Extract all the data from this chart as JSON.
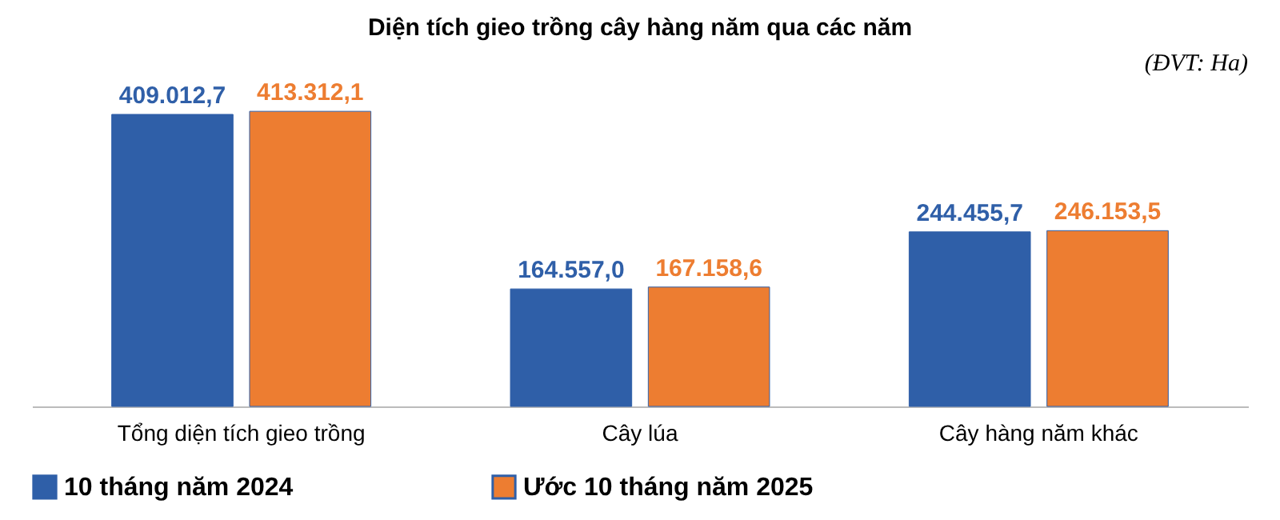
{
  "chart_data": {
    "type": "bar",
    "title": "Diện tích gieo trồng cây hàng năm qua các năm",
    "categories": [
      "Tổng diện tích gieo trồng",
      "Cây lúa",
      "Cây hàng năm khác"
    ],
    "series": [
      {
        "name": "10 tháng năm 2024",
        "color": "#2f5fa8",
        "values": [
          409012.7,
          164557.0,
          244455.7
        ],
        "value_labels": [
          "409.012,7",
          "164.557,0",
          "244.455,7"
        ]
      },
      {
        "name": "Ước 10 tháng năm 2025",
        "color": "#ed7d31",
        "values": [
          413312.1,
          167158.6,
          246153.5
        ],
        "value_labels": [
          "413.312,1",
          "167.158,6",
          "246.153,5"
        ]
      }
    ],
    "annotations": [
      "(ĐVT: Ha)"
    ],
    "legend": "bottom",
    "grid": false
  }
}
